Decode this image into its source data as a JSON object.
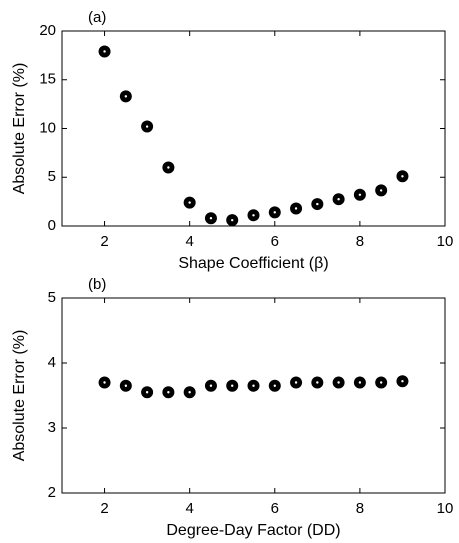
{
  "chart_data": [
    {
      "type": "scatter",
      "panel_label": "(a)",
      "x_label": "Shape Coefficient (β)",
      "y_label": "Absolute Error (%)",
      "x": [
        2,
        2.5,
        3,
        3.5,
        4,
        4.5,
        5,
        5.5,
        6,
        6.5,
        7,
        7.5,
        8,
        8.5,
        9
      ],
      "values": [
        17.9,
        13.3,
        10.2,
        6.0,
        2.4,
        0.8,
        0.6,
        1.1,
        1.4,
        1.8,
        2.25,
        2.75,
        3.2,
        3.65,
        5.1
      ],
      "color": "#000000",
      "xlim": [
        1,
        10
      ],
      "xticks": [
        2,
        4,
        6,
        8,
        10
      ],
      "ylim": [
        0,
        20
      ],
      "yticks": [
        0,
        5,
        10,
        15,
        20
      ],
      "grid": false
    },
    {
      "type": "scatter",
      "panel_label": "(b)",
      "x_label": "Degree-Day Factor (DD)",
      "y_label": "Absolute Error (%)",
      "x": [
        2,
        2.5,
        3,
        3.5,
        4,
        4.5,
        5,
        5.5,
        6,
        6.5,
        7,
        7.5,
        8,
        8.5,
        9
      ],
      "values": [
        3.7,
        3.65,
        3.55,
        3.55,
        3.55,
        3.65,
        3.65,
        3.65,
        3.65,
        3.7,
        3.7,
        3.7,
        3.7,
        3.7,
        3.72
      ],
      "color": "#000000",
      "xlim": [
        1,
        10
      ],
      "xticks": [
        2,
        4,
        6,
        8,
        10
      ],
      "ylim": [
        2,
        5
      ],
      "yticks": [
        2,
        3,
        4,
        5
      ],
      "grid": false
    }
  ]
}
